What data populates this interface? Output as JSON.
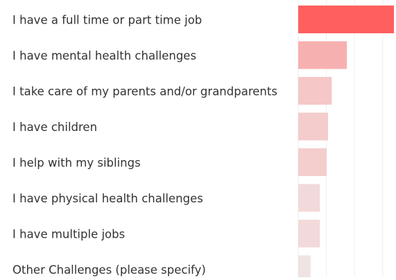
{
  "chart_data": {
    "type": "barh",
    "categories": [
      "I have a full time or part time job",
      "I have mental health challenges",
      "I take care of my parents and/or grandparents",
      "I have children",
      "I help with my siblings",
      "I have physical health challenges",
      "I have multiple jobs",
      "Other Challenges (please specify)"
    ],
    "values": [
      34,
      17.3,
      11.9,
      10.6,
      10.1,
      7.7,
      7.7,
      4.4
    ],
    "colors": [
      "#ff5f5f",
      "#f7b0b0",
      "#f5c7c7",
      "#f4cccc",
      "#f4cdcd",
      "#f2dada",
      "#f2dada",
      "#f0e3e3"
    ],
    "xlim": [
      0,
      34
    ],
    "xticks": [
      0,
      10,
      20,
      30
    ],
    "grid": true
  }
}
